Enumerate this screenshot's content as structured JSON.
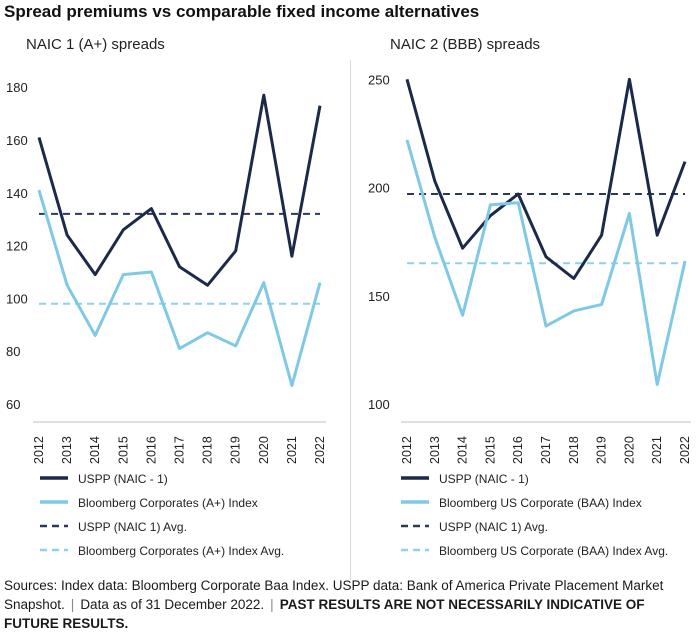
{
  "title": "Spread premiums vs comparable fixed income alternatives",
  "colors": {
    "navy": "#1b2a4a",
    "light_blue": "#7fc9e6",
    "navy_dashed": "#2b3a5c",
    "light_blue_dashed": "#8fd0ea",
    "axis": "#bfbfbf"
  },
  "chart_data": [
    {
      "type": "line",
      "title": "NAIC 1 (A+) spreads",
      "categories": [
        "2012",
        "2013",
        "2014",
        "2015",
        "2016",
        "2017",
        "2018",
        "2019",
        "2020",
        "2021",
        "2022"
      ],
      "ylim": [
        60,
        185
      ],
      "yticks": [
        60,
        80,
        100,
        120,
        140,
        160,
        180
      ],
      "series": [
        {
          "name": "USPP (NAIC - 1)",
          "style": "solid",
          "color": "#1b2a4a",
          "values": [
            161,
            124,
            109,
            126,
            134,
            112,
            105,
            118,
            177,
            116,
            173
          ]
        },
        {
          "name": "Bloomberg Corporates (A+) Index",
          "style": "solid",
          "color": "#7fc9e6",
          "values": [
            141,
            105,
            86,
            109,
            110,
            81,
            87,
            82,
            106,
            67,
            106
          ]
        },
        {
          "name": "USPP (NAIC 1) Avg.",
          "style": "dashed",
          "color": "#2b3a5c",
          "values": [
            132,
            132,
            132,
            132,
            132,
            132,
            132,
            132,
            132,
            132,
            132
          ]
        },
        {
          "name": "Bloomberg Corporates (A+) Index Avg.",
          "style": "dashed",
          "color": "#8fd0ea",
          "values": [
            98,
            98,
            98,
            98,
            98,
            98,
            98,
            98,
            98,
            98,
            98
          ]
        }
      ]
    },
    {
      "type": "line",
      "title": "NAIC 2 (BBB) spreads",
      "categories": [
        "2012",
        "2013",
        "2014",
        "2015",
        "2016",
        "2017",
        "2018",
        "2019",
        "2020",
        "2021",
        "2022"
      ],
      "ylim": [
        100,
        252
      ],
      "yticks": [
        100,
        150,
        200,
        250
      ],
      "series": [
        {
          "name": "USPP (NAIC - 1)",
          "style": "solid",
          "color": "#1b2a4a",
          "values": [
            250,
            203,
            172,
            187,
            197,
            168,
            158,
            178,
            250,
            178,
            212
          ]
        },
        {
          "name": "Bloomberg US Corporate (BAA) Index",
          "style": "solid",
          "color": "#7fc9e6",
          "values": [
            222,
            177,
            141,
            192,
            193,
            136,
            143,
            146,
            188,
            109,
            166
          ]
        },
        {
          "name": "USPP (NAIC 1) Avg.",
          "style": "dashed",
          "color": "#2b3a5c",
          "values": [
            197,
            197,
            197,
            197,
            197,
            197,
            197,
            197,
            197,
            197,
            197
          ]
        },
        {
          "name": "Bloomberg US Corporate (BAA) Index Avg.",
          "style": "dashed",
          "color": "#8fd0ea",
          "values": [
            165,
            165,
            165,
            165,
            165,
            165,
            165,
            165,
            165,
            165,
            165
          ]
        }
      ]
    }
  ],
  "footer": {
    "sources": "Sources: Index data: Bloomberg Corporate Baa Index. USPP data: Bank of America Private Placement Market Snapshot.",
    "data_as_of": "Data as of 31 December 2022.",
    "disclaimer": "PAST RESULTS ARE NOT NECESSARILY INDICATIVE OF FUTURE RESULTS.",
    "separator": "|"
  }
}
